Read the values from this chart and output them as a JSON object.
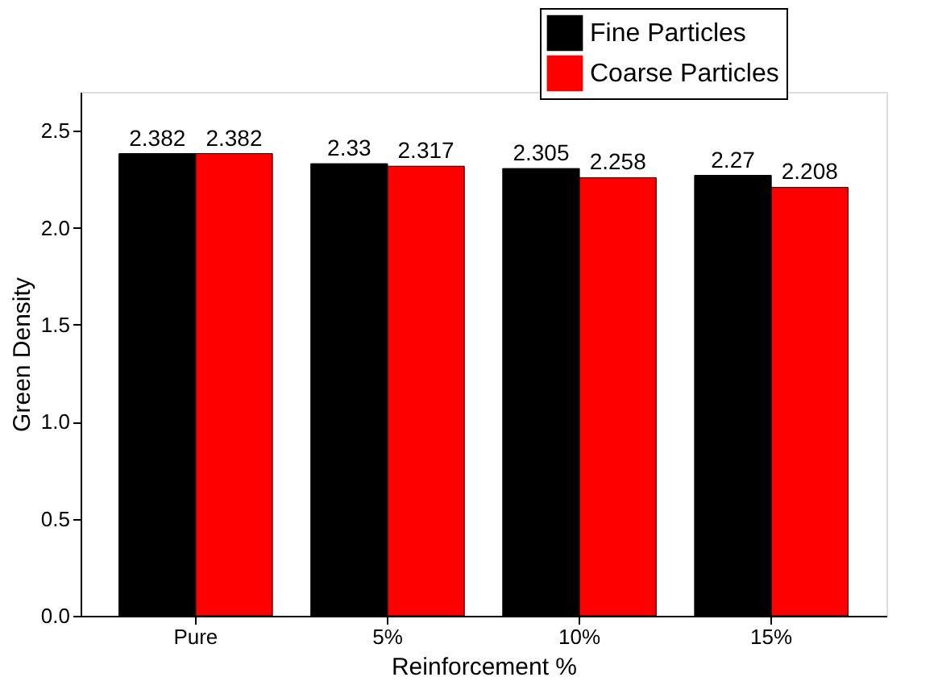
{
  "chart_data": {
    "type": "bar",
    "xlabel": "Reinforcement  %",
    "ylabel": "Green Density",
    "categories": [
      "Pure",
      "5%",
      "10%",
      "15%"
    ],
    "series": [
      {
        "name": "Fine Particles",
        "color": "#000000",
        "values": [
          2.382,
          2.33,
          2.305,
          2.27
        ]
      },
      {
        "name": "Coarse Particles",
        "color": "#ff0000",
        "values": [
          2.382,
          2.317,
          2.258,
          2.208
        ]
      }
    ],
    "ylim": [
      0,
      2.7
    ],
    "yticks": [
      {
        "value": 0,
        "label": "0.0"
      },
      0.5,
      {
        "value": 1,
        "label": "1.0"
      },
      1.5,
      {
        "value": 2,
        "label": "2.0"
      },
      2.5
    ],
    "grid": false,
    "legend": "top right",
    "data_labels": true
  }
}
